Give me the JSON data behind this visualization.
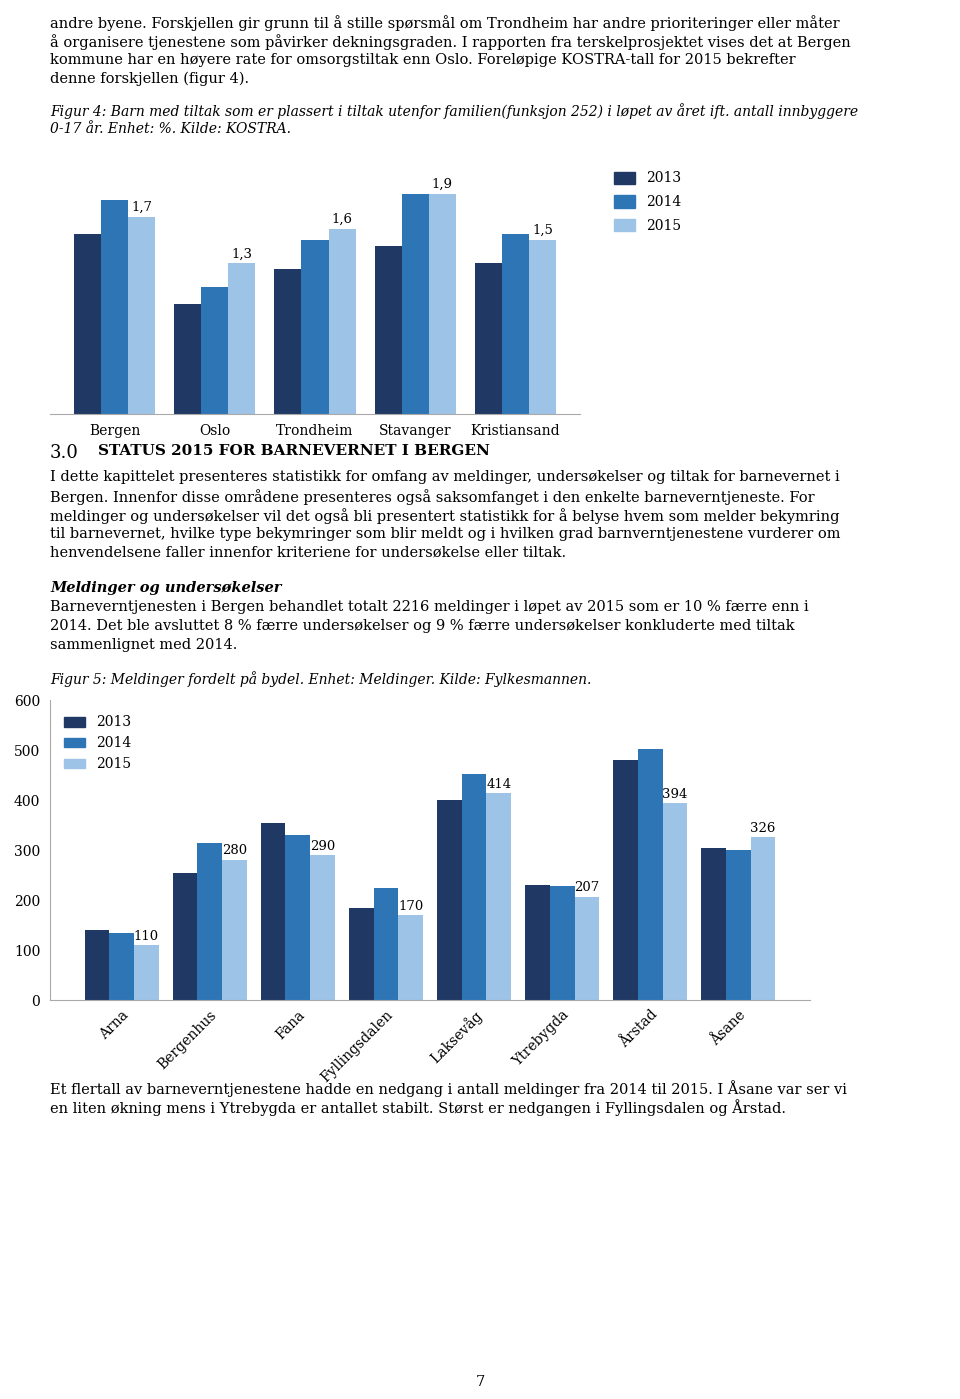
{
  "page_text_top": [
    "andre byene. Forskjellen gir grunn til å stille spørsmål om Trondheim har andre prioriteringer eller måter",
    "å organisere tjenestene som påvirker dekningsgraden. I rapporten fra terskelprosjektet vises det at Bergen",
    "kommune har en høyere rate for omsorgstiltak enn Oslo. Foreløpige KOSTRA-tall for 2015 bekrefter",
    "denne forskjellen (figur 4)."
  ],
  "fig4_caption_line1": "Figur 4: Barn med tiltak som er plassert i tiltak utenfor familien(funksjon 252) i løpet av året ift. antall innbyggere",
  "fig4_caption_line2": "0-17 år. Enhet: %. Kilde: KOSTRA.",
  "fig4_categories": [
    "Bergen",
    "Oslo",
    "Trondheim",
    "Stavanger",
    "Kristiansand"
  ],
  "fig4_2013": [
    1.55,
    0.95,
    1.25,
    1.45,
    1.3
  ],
  "fig4_2014": [
    1.85,
    1.1,
    1.5,
    1.9,
    1.55
  ],
  "fig4_2015": [
    1.7,
    1.3,
    1.6,
    1.9,
    1.5
  ],
  "fig4_labels_2015": [
    "1,7",
    "1,3",
    "1,6",
    "1,9",
    "1,5"
  ],
  "fig4_ylim": [
    0,
    2.2
  ],
  "fig4_color_2013": "#1F3864",
  "fig4_color_2014": "#2E75B6",
  "fig4_color_2015": "#9DC3E6",
  "section_num": "3.0",
  "section_title_text": "Status 2015 for barnevernet i Bergen",
  "section_body": [
    "I dette kapittelet presenteres statistikk for omfang av meldinger, undersøkelser og tiltak for barnevernet i",
    "Bergen. Innenfor disse områdene presenteres også saksomfanget i den enkelte barneverntjeneste. For",
    "meldinger og undersøkelser vil det også bli presentert statistikk for å belyse hvem som melder bekymring",
    "til barnevernet, hvilke type bekymringer som blir meldt og i hvilken grad barnverntjenestene vurderer om",
    "henvendelsene faller innenfor kriteriene for undersøkelse eller tiltak."
  ],
  "meldinger_title_bold": "Meldinger og undersøkelser",
  "meldinger_body": [
    "Barneverntjenesten i Bergen behandlet totalt 2216 meldinger i løpet av 2015 som er 10 % færre enn i",
    "2014. Det ble avsluttet 8 % færre undersøkelser og 9 % færre undersøkelser konkluderte med tiltak",
    "sammenlignet med 2014."
  ],
  "fig5_caption": "Figur 5: Meldinger fordelt på bydel. Enhet: Meldinger. Kilde: Fylkesmannen.",
  "fig5_categories": [
    "Arna",
    "Bergenhus",
    "Fana",
    "Fyllingsdalen",
    "Laksevåg",
    "Ytrebygda",
    "Årstad",
    "Åsane"
  ],
  "fig5_2013": [
    140,
    255,
    355,
    185,
    400,
    230,
    480,
    305
  ],
  "fig5_2014": [
    135,
    315,
    330,
    225,
    452,
    228,
    502,
    300
  ],
  "fig5_2015": [
    110,
    280,
    290,
    170,
    414,
    207,
    394,
    326
  ],
  "fig5_labels_2015": [
    "110",
    "280",
    "290",
    "170",
    "414",
    "207",
    "394",
    "326"
  ],
  "fig5_ylim": [
    0,
    600
  ],
  "fig5_yticks": [
    0,
    100,
    200,
    300,
    400,
    500,
    600
  ],
  "fig5_color_2013": "#1F3864",
  "fig5_color_2014": "#2E75B6",
  "fig5_color_2015": "#9DC3E6",
  "footer_text_bottom": [
    "Et flertall av barneverntjenestene hadde en nedgang i antall meldinger fra 2014 til 2015. I Åsane var ser vi",
    "en liten økning mens i Ytrebygda er antallet stabilt. Størst er nedgangen i Fyllingsdalen og Årstad."
  ],
  "page_number": "7"
}
